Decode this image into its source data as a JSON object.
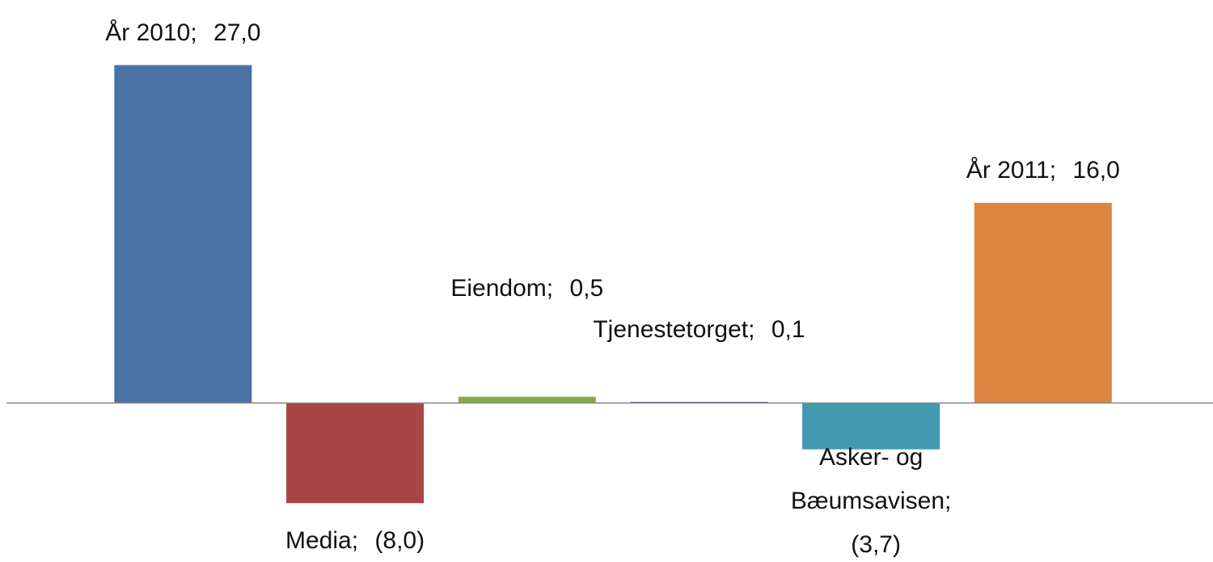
{
  "chart_data": {
    "type": "bar",
    "categories": [
      "År 2010",
      "Media",
      "Eiendom",
      "Tjenestetorget",
      "Asker- og Bæumsavisen",
      "År 2011"
    ],
    "values": [
      27.0,
      -8.0,
      0.5,
      0.1,
      -3.7,
      16.0
    ],
    "value_labels": [
      "27,0",
      "(8,0)",
      "0,5",
      "0,1",
      "(3,7)",
      "16,0"
    ],
    "label_separator": ";",
    "colors": [
      "#4a72a4",
      "#a94545",
      "#8aa64e",
      "#7a5e9a",
      "#4299b0",
      "#db8540"
    ],
    "ylim": [
      -12.7,
      32.2
    ]
  }
}
